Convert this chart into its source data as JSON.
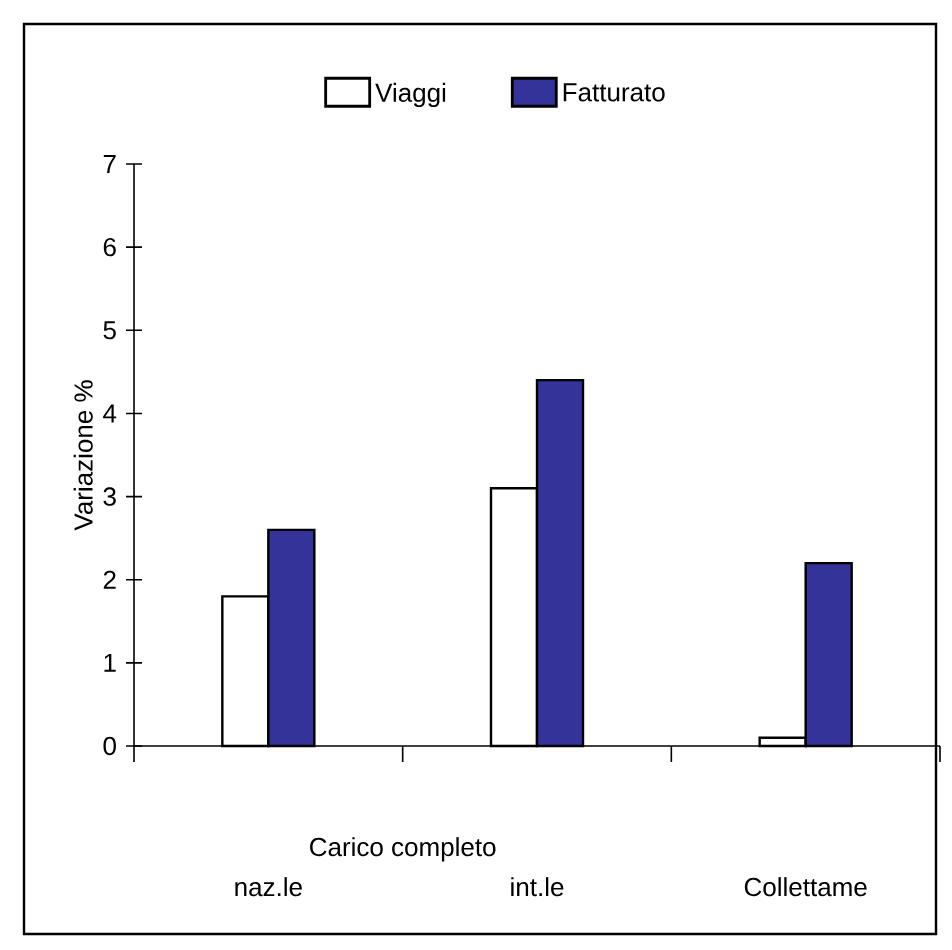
{
  "chart_data": {
    "type": "bar",
    "ylabel": "Variazione %",
    "categories": [
      "naz.le",
      "int.le",
      "Collettame"
    ],
    "annotations": [
      "Carico completo"
    ],
    "series": [
      {
        "name": "Viaggi",
        "color": "#ffffff",
        "values": [
          1.8,
          3.1,
          0.1
        ]
      },
      {
        "name": "Fatturato",
        "color": "#333399",
        "values": [
          2.6,
          4.4,
          2.2
        ]
      }
    ],
    "ylim": [
      0,
      7
    ],
    "yticks": [
      0,
      1,
      2,
      3,
      4,
      5,
      6,
      7
    ],
    "legend": "top",
    "grid": false
  }
}
